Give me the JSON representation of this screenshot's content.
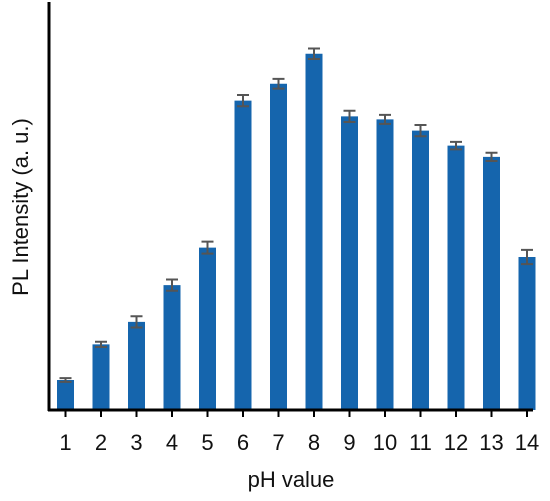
{
  "chart_data": {
    "type": "bar",
    "title": "",
    "xlabel": "pH value",
    "ylabel": "PL Intensity (a. u.)",
    "categories": [
      "1",
      "2",
      "3",
      "4",
      "5",
      "6",
      "7",
      "8",
      "9",
      "10",
      "11",
      "12",
      "13",
      "14"
    ],
    "values": [
      8,
      17.5,
      23.5,
      33.3,
      43.3,
      82.5,
      87,
      95,
      78.3,
      77.5,
      74.5,
      70.5,
      67.5,
      40.8
    ],
    "errors": [
      0.5,
      0.7,
      1.5,
      1.5,
      1.6,
      1.5,
      1.3,
      1.4,
      1.5,
      1.2,
      1.5,
      1.0,
      1.1,
      1.9
    ],
    "ylim": [
      0,
      100
    ],
    "yticks_shown": false,
    "grid": false,
    "legend": "none",
    "colors": {
      "bar": "#1565ad",
      "error_bar": "#555555",
      "axis": "#000000"
    }
  }
}
